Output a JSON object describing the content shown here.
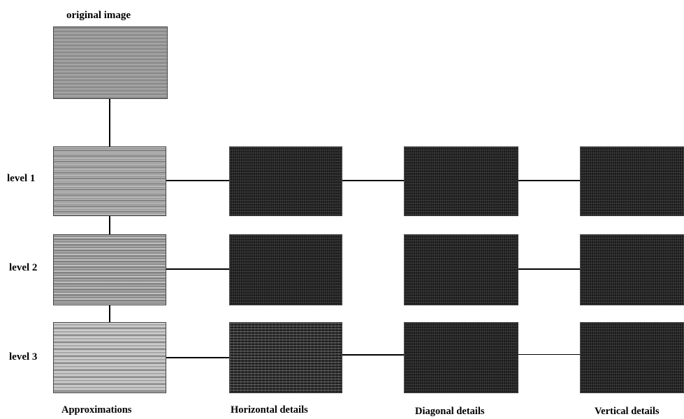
{
  "title": "original image",
  "levels": [
    "level 1",
    "level 2",
    "level 3"
  ],
  "columns": [
    "Approximations",
    "Horizontal details",
    "Diagonal details",
    "Vertical details"
  ]
}
